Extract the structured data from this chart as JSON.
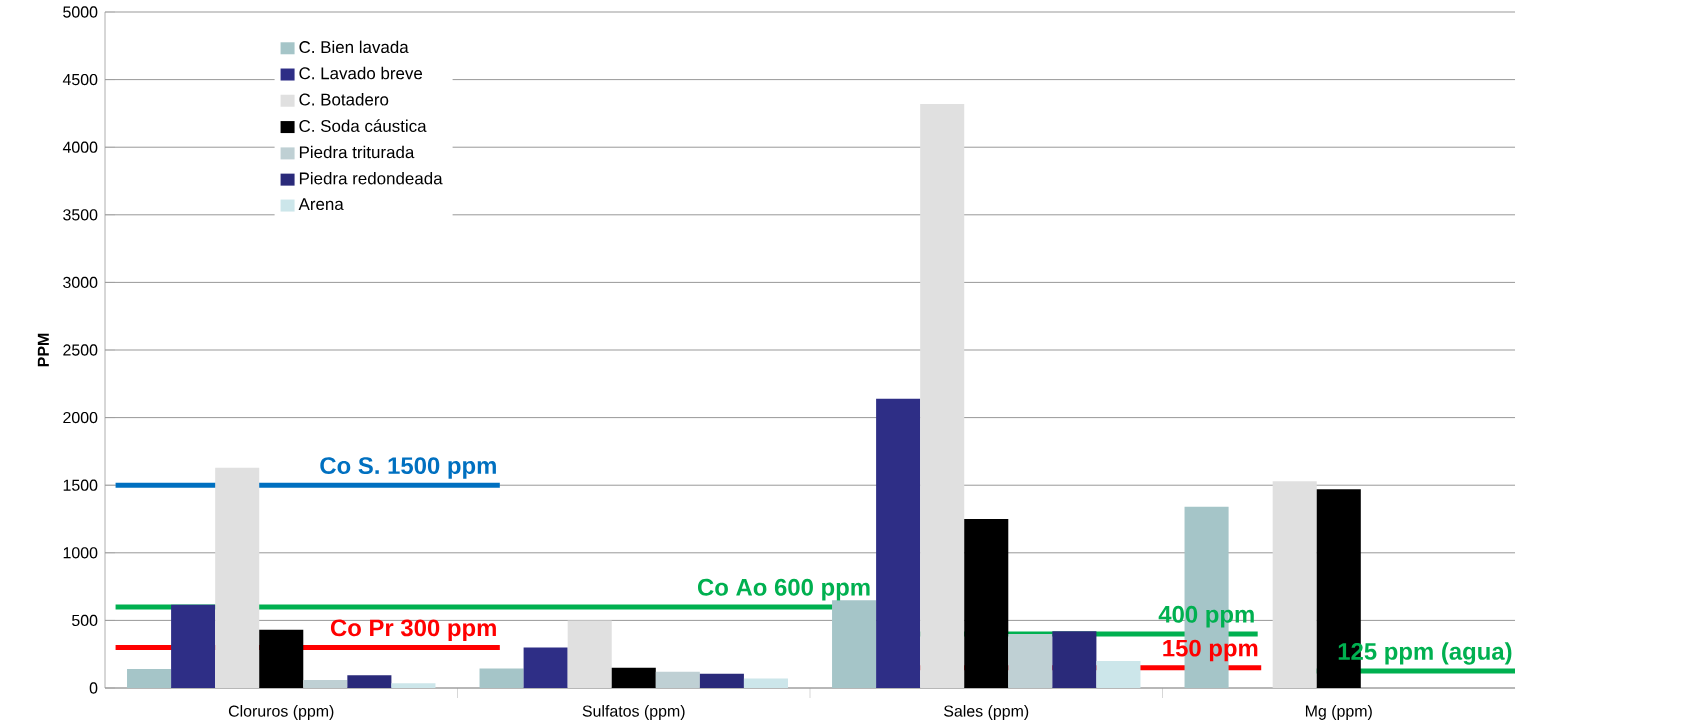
{
  "chart_data": {
    "type": "bar",
    "ylabel": "PPM",
    "categories": [
      "Cloruros (ppm)",
      "Sulfatos (ppm)",
      "Sales (ppm)",
      "Mg (ppm)"
    ],
    "series": [
      {
        "name": "C. Bien lavada",
        "color": "#a5c5c8",
        "values": [
          140,
          145,
          650,
          1340
        ]
      },
      {
        "name": "C. Lavado breve",
        "color": "#2e2e86",
        "values": [
          615,
          300,
          2140,
          null
        ]
      },
      {
        "name": "C. Botadero",
        "color": "#e0e0e0",
        "values": [
          1630,
          500,
          4320,
          1530
        ]
      },
      {
        "name": "C. Soda cáustica",
        "color": "#000000",
        "values": [
          430,
          150,
          1250,
          1470
        ]
      },
      {
        "name": "Piedra triturada",
        "color": "#bfd0d4",
        "values": [
          60,
          120,
          400,
          null
        ]
      },
      {
        "name": "Piedra redondeada",
        "color": "#2a2a7a",
        "values": [
          95,
          105,
          420,
          null
        ]
      },
      {
        "name": "Arena",
        "color": "#cce6ea",
        "values": [
          35,
          70,
          200,
          null
        ]
      }
    ],
    "ylim": [
      0,
      5000
    ],
    "yticks": [
      0,
      500,
      1000,
      1500,
      2000,
      2500,
      3000,
      3500,
      4000,
      4500,
      5000
    ],
    "grid": "y",
    "legend": "top left",
    "ref_lines": [
      {
        "axis": "y",
        "value": 1500,
        "label": "Co S. 1500 ppm",
        "color": "#0070c0"
      },
      {
        "axis": "y",
        "value": 600,
        "label": "Co Ao 600 ppm",
        "color": "#00b050"
      },
      {
        "axis": "y",
        "value": 300,
        "label": "Co Pr 300 ppm",
        "color": "#ff0000"
      },
      {
        "axis": "y",
        "value": 400,
        "label": "400 ppm",
        "color": "#00b050"
      },
      {
        "axis": "y",
        "value": 150,
        "label": "150 ppm",
        "color": "#ff0000"
      },
      {
        "axis": "y",
        "value": 125,
        "label": "125 ppm (agua)",
        "color": "#00b050"
      }
    ]
  }
}
